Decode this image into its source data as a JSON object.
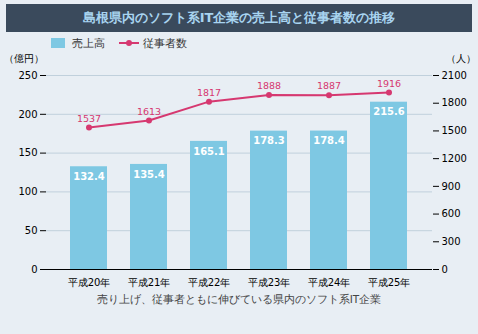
{
  "chart_data": {
    "type": "bar",
    "title": "島根県内のソフト系IT企業の売上高と従事者数の推移",
    "subtitle": "売り上げ、従事者ともに伸びている県内のソフト系IT企業",
    "categories": [
      "平成20年",
      "平成21年",
      "平成22年",
      "平成23年",
      "平成24年",
      "平成25年"
    ],
    "series": [
      {
        "name": "売上高",
        "type": "bar",
        "color": "#7EC8E3",
        "values": [
          132.4,
          135.4,
          165.1,
          178.3,
          178.4,
          215.6
        ]
      },
      {
        "name": "従事者数",
        "type": "line",
        "color": "#D63870",
        "marker": "circle",
        "axis": "y2",
        "values": [
          1537,
          1613,
          1817,
          1888,
          1887,
          1916
        ]
      }
    ],
    "ylabel": "（億円）",
    "y2label": "（人）",
    "ylim": [
      0,
      250
    ],
    "yticks": [
      0,
      50,
      100,
      150,
      200,
      250
    ],
    "y2lim": [
      0,
      2100
    ],
    "y2ticks": [
      0,
      300,
      600,
      900,
      1200,
      1500,
      1800,
      2100
    ],
    "grid": true,
    "legend": "upper left",
    "data_labels": true
  }
}
